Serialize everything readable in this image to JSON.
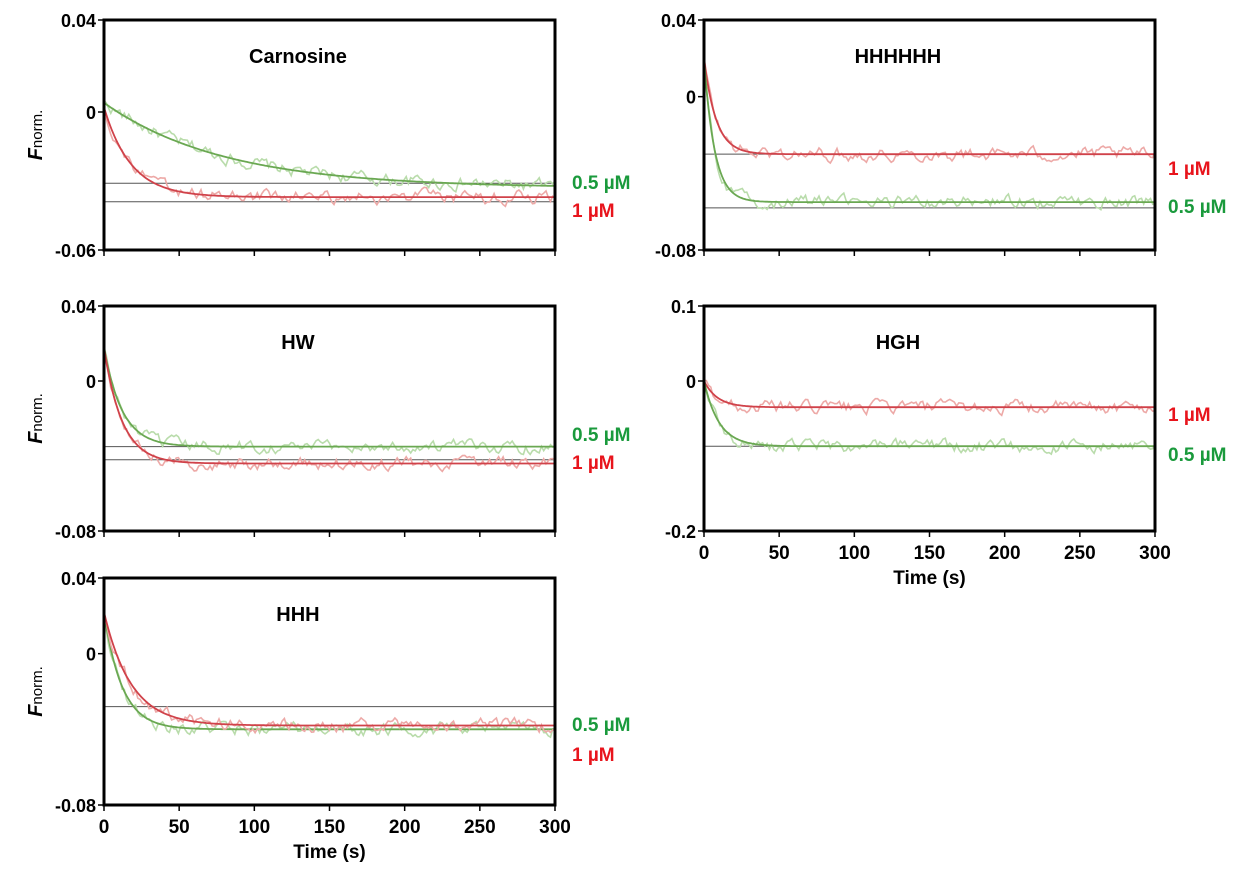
{
  "colors": {
    "series_05": "#1a9a3c",
    "series_1": "#e8141c",
    "raw_05": "#b9dcab",
    "raw_1": "#eda9a7",
    "fit_05": "#6aa852",
    "fit_1": "#d0424a",
    "baseline": "#555555",
    "axis": "#000000"
  },
  "ylabel_main": "F",
  "ylabel_sub": "norm.",
  "xlabel": "Time (s)",
  "chart_data": [
    {
      "type": "line",
      "title": "Carnosine",
      "xlim": [
        0,
        300
      ],
      "ylim": [
        -0.06,
        0.04
      ],
      "yticklabels": [
        {
          "value": 0.04,
          "label": "0.04"
        },
        {
          "value": 0,
          "label": "0"
        },
        {
          "value": -0.06,
          "label": "-0.06"
        }
      ],
      "xticklabels": [],
      "series": [
        {
          "name": "0.5 µM",
          "color": "#1a9a3c",
          "model": {
            "plateau": -0.033,
            "y0": 0.004,
            "tau": 80
          }
        },
        {
          "name": "1 µM",
          "color": "#e8141c",
          "model": {
            "plateau": -0.037,
            "y0": 0.002,
            "tau": 18
          }
        }
      ],
      "baselines": [
        -0.031,
        -0.039
      ],
      "grid": false,
      "legend": "right"
    },
    {
      "type": "line",
      "title": "HHHHHH",
      "xlim": [
        0,
        300
      ],
      "ylim": [
        -0.08,
        0.04
      ],
      "yticklabels": [
        {
          "value": 0.04,
          "label": "0.04"
        },
        {
          "value": 0,
          "label": "0"
        },
        {
          "value": -0.08,
          "label": "-0.08"
        }
      ],
      "xticklabels": [],
      "series": [
        {
          "name": "1 µM",
          "color": "#e8141c",
          "model": {
            "plateau": -0.03,
            "y0": 0.02,
            "tau": 8
          }
        },
        {
          "name": "0.5 µM",
          "color": "#1a9a3c",
          "model": {
            "plateau": -0.055,
            "y0": 0.02,
            "tau": 7
          }
        }
      ],
      "baselines": [
        -0.03,
        -0.058
      ],
      "grid": false,
      "legend": "right"
    },
    {
      "type": "line",
      "title": "HW",
      "xlim": [
        0,
        300
      ],
      "ylim": [
        -0.08,
        0.04
      ],
      "yticklabels": [
        {
          "value": 0.04,
          "label": "0.04"
        },
        {
          "value": 0,
          "label": "0"
        },
        {
          "value": -0.08,
          "label": "-0.08"
        }
      ],
      "xticklabels": [],
      "series": [
        {
          "name": "0.5 µM",
          "color": "#1a9a3c",
          "model": {
            "plateau": -0.035,
            "y0": 0.018,
            "tau": 12
          }
        },
        {
          "name": "1 µM",
          "color": "#e8141c",
          "model": {
            "plateau": -0.044,
            "y0": 0.018,
            "tau": 12
          }
        }
      ],
      "baselines": [
        -0.035,
        -0.042
      ],
      "grid": false,
      "legend": "right"
    },
    {
      "type": "line",
      "title": "HGH",
      "xlim": [
        0,
        300
      ],
      "ylim": [
        -0.2,
        0.1
      ],
      "yticklabels": [
        {
          "value": 0.1,
          "label": "0.1"
        },
        {
          "value": 0,
          "label": "0"
        },
        {
          "value": -0.2,
          "label": "-0.2"
        }
      ],
      "xticklabels": [
        "0",
        "50",
        "100",
        "150",
        "200",
        "250",
        "300"
      ],
      "series": [
        {
          "name": "1 µM",
          "color": "#e8141c",
          "model": {
            "plateau": -0.035,
            "y0": 0.0,
            "tau": 9
          }
        },
        {
          "name": "0.5 µM",
          "color": "#1a9a3c",
          "model": {
            "plateau": -0.087,
            "y0": 0.0,
            "tau": 10
          }
        }
      ],
      "baselines": [
        -0.087
      ],
      "grid": false,
      "legend": "right"
    },
    {
      "type": "line",
      "title": "HHH",
      "xlim": [
        0,
        300
      ],
      "ylim": [
        -0.08,
        0.04
      ],
      "yticklabels": [
        {
          "value": 0.04,
          "label": "0.04"
        },
        {
          "value": 0,
          "label": "0"
        },
        {
          "value": -0.08,
          "label": "-0.08"
        }
      ],
      "xticklabels": [
        "0",
        "50",
        "100",
        "150",
        "200",
        "250",
        "300"
      ],
      "series": [
        {
          "name": "0.5 µM",
          "color": "#1a9a3c",
          "model": {
            "plateau": -0.04,
            "y0": 0.022,
            "tau": 12
          }
        },
        {
          "name": "1 µM",
          "color": "#e8141c",
          "model": {
            "plateau": -0.038,
            "y0": 0.022,
            "tau": 18
          }
        }
      ],
      "baselines": [
        -0.028
      ],
      "grid": false,
      "legend": "right"
    }
  ]
}
